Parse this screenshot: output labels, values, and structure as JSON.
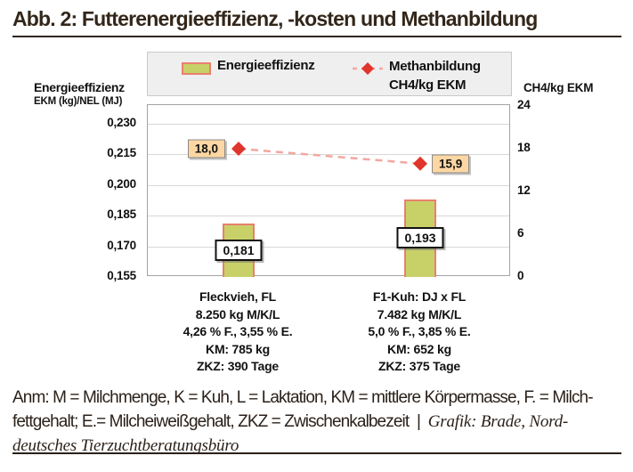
{
  "title": "Abb. 2: Futterenergieeffizienz, -kosten und Methanbildung",
  "legend": {
    "bar_label": "Energieeffizienz",
    "line_label_line1": "Methanbildung",
    "line_label_line2": "CH4/kg EKM"
  },
  "chart_data": {
    "type": "bar+line",
    "title": "Futterenergieeffizienz, -kosten und Methanbildung",
    "grid": true,
    "legend_position": "top",
    "categories": [
      {
        "lines": [
          "Fleckvieh, FL",
          "8.250 kg M/K/L",
          "4,26 % F., 3,55 % E.",
          "KM: 785 kg",
          "ZKZ: 390 Tage"
        ]
      },
      {
        "lines": [
          "F1-Kuh: DJ x FL",
          "7.482 kg M/K/L",
          "5,0 % F., 3,85 % E.",
          "KM: 652 kg",
          "ZKZ: 375 Tage"
        ]
      }
    ],
    "series": [
      {
        "name": "Energieeffizienz",
        "type": "bar",
        "axis": "left",
        "values": [
          0.181,
          0.193
        ],
        "labels": [
          "0,181",
          "0,193"
        ]
      },
      {
        "name": "Methanbildung CH4/kg EKM",
        "type": "line",
        "axis": "right",
        "values": [
          18.0,
          15.9
        ],
        "labels": [
          "18,0",
          "15,9"
        ],
        "label_sides": [
          "left",
          "right"
        ]
      }
    ],
    "left_axis": {
      "title_line1": "Energieeffizienz",
      "title_line2": "EKM (kg)/NEL (MJ)",
      "tick_values": [
        0.23,
        0.215,
        0.2,
        0.185,
        0.17,
        0.155
      ],
      "tick_labels": [
        "0,230",
        "0,215",
        "0,200",
        "0,185",
        "0,170",
        "0,155"
      ],
      "min": 0.155,
      "max": 0.2392
    },
    "right_axis": {
      "title": "CH4/kg EKM",
      "tick_values": [
        24,
        18,
        12,
        6,
        0
      ],
      "tick_labels": [
        "24",
        "18",
        "12",
        "6",
        "0"
      ],
      "min": 0,
      "max": 24.125
    }
  },
  "footer": {
    "line1": "Anm: M = Milchmenge, K = Kuh, L = Laktation, KM = mittlere Körpermasse, F. = Milch-",
    "line2_sans": "fettgehalt; E.= Milcheiweißgehalt, ZKZ = Zwischenkalbezeit  |  ",
    "line2_italic": "Grafik: Brade, Nord-",
    "line3_italic": "deutsches Tierzuchtberatungsbüro"
  },
  "colors": {
    "bar_fill": "#c8d168",
    "bar_border": "#ea7f6f",
    "diamond": "#e0352c",
    "dashed_line": "#f2a79f",
    "methane_box_fill": "#fcd7a3",
    "value_box_fill": "#ffffff",
    "legend_bg": "#efefef",
    "gridline": "#d8d8d8",
    "accent_dark": "#33261a"
  }
}
